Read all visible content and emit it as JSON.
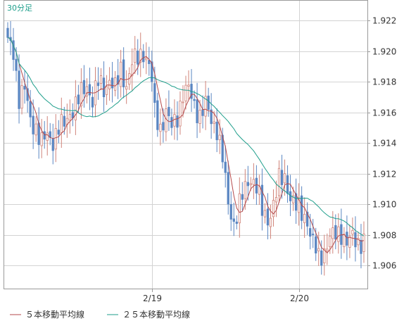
{
  "chart_data": {
    "type": "candlestick",
    "timeframe_label": "30分足",
    "y_ticks": [
      1.906,
      1.908,
      1.91,
      1.912,
      1.914,
      1.916,
      1.918,
      1.92,
      1.922
    ],
    "ylim": [
      1.9045,
      1.9233
    ],
    "x_tick_labels": [
      {
        "label": "2/19",
        "index": 51
      },
      {
        "label": "2/20",
        "index": 103
      }
    ],
    "candle_count": 127,
    "close_path": [
      [
        0,
        1.9206
      ],
      [
        2,
        1.92
      ],
      [
        4,
        1.917
      ],
      [
        6,
        1.9175
      ],
      [
        8,
        1.9155
      ],
      [
        10,
        1.915
      ],
      [
        12,
        1.914
      ],
      [
        14,
        1.9145
      ],
      [
        16,
        1.9142
      ],
      [
        18,
        1.915
      ],
      [
        20,
        1.9152
      ],
      [
        22,
        1.916
      ],
      [
        24,
        1.9165
      ],
      [
        26,
        1.9172
      ],
      [
        28,
        1.9178
      ],
      [
        30,
        1.9168
      ],
      [
        32,
        1.918
      ],
      [
        34,
        1.9175
      ],
      [
        36,
        1.9182
      ],
      [
        38,
        1.9175
      ],
      [
        40,
        1.9188
      ],
      [
        42,
        1.9178
      ],
      [
        44,
        1.9192
      ],
      [
        46,
        1.9196
      ],
      [
        48,
        1.92
      ],
      [
        50,
        1.919
      ],
      [
        51,
        1.918
      ],
      [
        52,
        1.916
      ],
      [
        54,
        1.915
      ],
      [
        56,
        1.916
      ],
      [
        58,
        1.915
      ],
      [
        60,
        1.9158
      ],
      [
        62,
        1.9172
      ],
      [
        64,
        1.9175
      ],
      [
        66,
        1.9165
      ],
      [
        68,
        1.9158
      ],
      [
        70,
        1.9165
      ],
      [
        72,
        1.9155
      ],
      [
        74,
        1.915
      ],
      [
        76,
        1.913
      ],
      [
        78,
        1.91
      ],
      [
        80,
        1.9088
      ],
      [
        82,
        1.91
      ],
      [
        84,
        1.911
      ],
      [
        86,
        1.9118
      ],
      [
        88,
        1.9112
      ],
      [
        90,
        1.9095
      ],
      [
        92,
        1.909
      ],
      [
        94,
        1.91
      ],
      [
        96,
        1.9115
      ],
      [
        98,
        1.9118
      ],
      [
        100,
        1.9105
      ],
      [
        102,
        1.9098
      ],
      [
        104,
        1.9095
      ],
      [
        106,
        1.909
      ],
      [
        107,
        1.908
      ],
      [
        108,
        1.9075
      ],
      [
        110,
        1.9065
      ],
      [
        112,
        1.907
      ],
      [
        114,
        1.9078
      ],
      [
        116,
        1.908
      ],
      [
        118,
        1.9082
      ],
      [
        120,
        1.9075
      ],
      [
        122,
        1.9078
      ],
      [
        124,
        1.9075
      ],
      [
        126,
        1.9077
      ]
    ],
    "series": [
      {
        "name": "５本移動平均線",
        "color": "#b4494b"
      },
      {
        "name": "２５本移動平均線",
        "color": "#1e9e8b"
      }
    ],
    "up_color": "#d0847a",
    "down_color": "#5a86c2",
    "grid": true,
    "legend_position": "bottom-left"
  }
}
